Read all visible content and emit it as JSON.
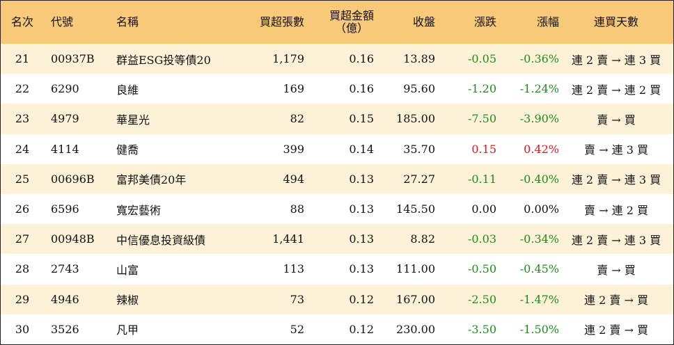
{
  "headers": {
    "rank": "名次",
    "code": "代號",
    "name": "名稱",
    "vol": "買超張數",
    "amt_line1": "買超金額",
    "amt_line2": "（億）",
    "close": "收盤",
    "chg": "漲跌",
    "pct": "漲幅",
    "days": "連買天數"
  },
  "rows": [
    {
      "rank": "21",
      "code": "00937B",
      "name": "群益ESG投等債20",
      "vol": "1,179",
      "amt": "0.16",
      "close": "13.89",
      "chg": "-0.05",
      "pct": "-0.36%",
      "days": "連 2 賣 → 連 3 買",
      "dir": "neg"
    },
    {
      "rank": "22",
      "code": "6290",
      "name": "良維",
      "vol": "169",
      "amt": "0.16",
      "close": "95.60",
      "chg": "-1.20",
      "pct": "-1.24%",
      "days": "連 2 賣 → 連 2 買",
      "dir": "neg"
    },
    {
      "rank": "23",
      "code": "4979",
      "name": "華星光",
      "vol": "82",
      "amt": "0.15",
      "close": "185.00",
      "chg": "-7.50",
      "pct": "-3.90%",
      "days": "賣 → 買",
      "dir": "neg"
    },
    {
      "rank": "24",
      "code": "4114",
      "name": "健喬",
      "vol": "399",
      "amt": "0.14",
      "close": "35.70",
      "chg": "0.15",
      "pct": "0.42%",
      "days": "賣 → 連 3 買",
      "dir": "pos"
    },
    {
      "rank": "25",
      "code": "00696B",
      "name": "富邦美債20年",
      "vol": "494",
      "amt": "0.13",
      "close": "27.27",
      "chg": "-0.11",
      "pct": "-0.40%",
      "days": "連 2 賣 → 連 3 買",
      "dir": "neg"
    },
    {
      "rank": "26",
      "code": "6596",
      "name": "寬宏藝術",
      "vol": "88",
      "amt": "0.13",
      "close": "145.50",
      "chg": "0.00",
      "pct": "0.00%",
      "days": "賣 → 連 2 買",
      "dir": "zero"
    },
    {
      "rank": "27",
      "code": "00948B",
      "name": "中信優息投資級債",
      "vol": "1,441",
      "amt": "0.13",
      "close": "8.82",
      "chg": "-0.03",
      "pct": "-0.34%",
      "days": "連 2 賣 → 連 3 買",
      "dir": "neg"
    },
    {
      "rank": "28",
      "code": "2743",
      "name": "山富",
      "vol": "113",
      "amt": "0.13",
      "close": "111.00",
      "chg": "-0.50",
      "pct": "-0.45%",
      "days": "賣 → 買",
      "dir": "neg"
    },
    {
      "rank": "29",
      "code": "4946",
      "name": "辣椒",
      "vol": "73",
      "amt": "0.12",
      "close": "167.00",
      "chg": "-2.50",
      "pct": "-1.47%",
      "days": "連 2 賣 → 買",
      "dir": "neg"
    },
    {
      "rank": "30",
      "code": "3526",
      "name": "凡甲",
      "vol": "52",
      "amt": "0.12",
      "close": "230.00",
      "chg": "-3.50",
      "pct": "-1.50%",
      "days": "連 2 賣 → 買",
      "dir": "neg"
    }
  ],
  "colors": {
    "header_bg": "#f9c97a",
    "odd_row_bg": "#fdf1d8",
    "up": "#e0141e",
    "down": "#1e8c1e"
  }
}
